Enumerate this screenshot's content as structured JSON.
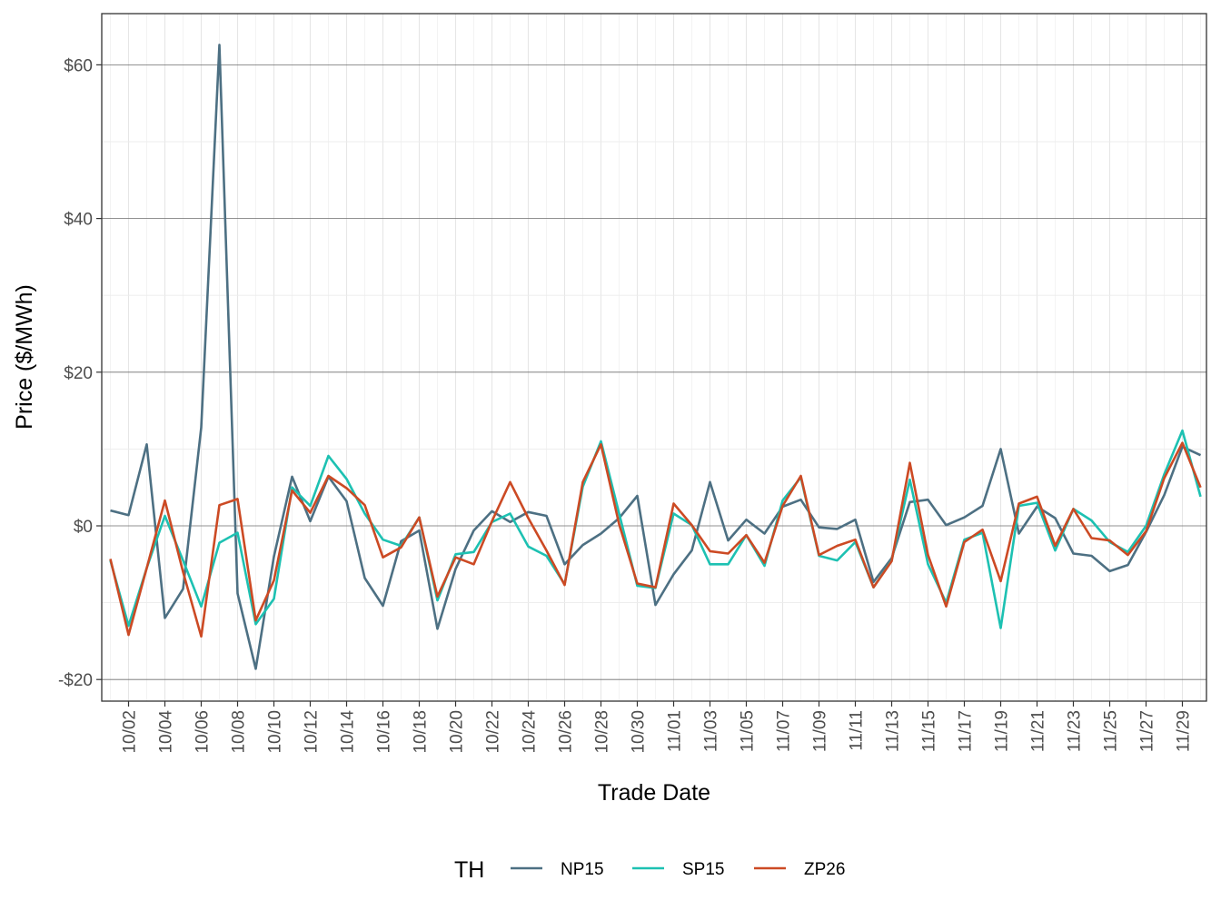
{
  "chart_data": {
    "type": "line",
    "title": "",
    "xlabel": "Trade Date",
    "ylabel": "Price ($/MWh)",
    "ylim": [
      -22.5,
      66.5
    ],
    "y_ticks": [
      -20,
      0,
      20,
      40,
      60
    ],
    "y_tick_labels": [
      "-$20",
      "$0",
      "$20",
      "$40",
      "$60"
    ],
    "x_tick_labels": [
      "10/02",
      "10/04",
      "10/06",
      "10/08",
      "10/10",
      "10/12",
      "10/14",
      "10/16",
      "10/18",
      "10/20",
      "10/22",
      "10/24",
      "10/26",
      "10/28",
      "10/30",
      "11/01",
      "11/03",
      "11/05",
      "11/07",
      "11/09",
      "11/11",
      "11/13",
      "11/15",
      "11/17",
      "11/19",
      "11/21",
      "11/23",
      "11/25",
      "11/27",
      "11/29"
    ],
    "grid": true,
    "legend_title": "TH",
    "legend_position": "bottom",
    "x": [
      "10/01",
      "10/02",
      "10/03",
      "10/04",
      "10/05",
      "10/06",
      "10/07",
      "10/08",
      "10/09",
      "10/10",
      "10/11",
      "10/12",
      "10/13",
      "10/14",
      "10/15",
      "10/16",
      "10/17",
      "10/18",
      "10/19",
      "10/20",
      "10/21",
      "10/22",
      "10/23",
      "10/24",
      "10/25",
      "10/26",
      "10/27",
      "10/28",
      "10/29",
      "10/30",
      "10/31",
      "11/01",
      "11/02",
      "11/03",
      "11/04",
      "11/05",
      "11/06",
      "11/07",
      "11/08",
      "11/09",
      "11/10",
      "11/11",
      "11/12",
      "11/13",
      "11/14",
      "11/15",
      "11/16",
      "11/17",
      "11/18",
      "11/19",
      "11/20",
      "11/21",
      "11/22",
      "11/23",
      "11/24",
      "11/25",
      "11/26",
      "11/27",
      "11/28",
      "11/29",
      "11/30"
    ],
    "series": [
      {
        "name": "NP15",
        "color": "#4d7083",
        "values": [
          2.0,
          1.4,
          10.6,
          -12.0,
          -8.2,
          12.8,
          62.6,
          -8.8,
          -18.6,
          -4.0,
          6.4,
          0.6,
          6.4,
          3.2,
          -6.8,
          -10.4,
          -2.0,
          -0.6,
          -13.4,
          -5.6,
          -0.6,
          1.9,
          0.5,
          1.8,
          1.3,
          -5.0,
          -2.5,
          -1.0,
          1.0,
          3.9,
          -10.3,
          -6.3,
          -3.2,
          5.7,
          -1.9,
          0.8,
          -1.0,
          2.5,
          3.4,
          -0.2,
          -0.4,
          0.8,
          -7.3,
          -4.2,
          3.1,
          3.4,
          0.1,
          1.1,
          2.6,
          10.0,
          -1.0,
          2.5,
          1.0,
          -3.6,
          -3.9,
          -5.9,
          -5.1,
          -0.8,
          4.0,
          10.3,
          9.2
        ]
      },
      {
        "name": "SP15",
        "color": "#1dc1b2",
        "values": [
          -4.5,
          -13.0,
          -5.5,
          1.3,
          -4.5,
          -10.5,
          -2.2,
          -0.9,
          -12.8,
          -9.5,
          5.0,
          2.6,
          9.1,
          6.1,
          1.6,
          -1.8,
          -2.6,
          1.1,
          -9.7,
          -3.7,
          -3.4,
          0.5,
          1.6,
          -2.7,
          -3.9,
          -7.6,
          5.1,
          11.0,
          1.6,
          -7.8,
          -8.1,
          1.6,
          0.1,
          -5.0,
          -5.0,
          -1.2,
          -5.2,
          3.3,
          6.3,
          -3.9,
          -4.5,
          -2.1,
          -8.0,
          -4.5,
          6.0,
          -5.0,
          -10.0,
          -1.8,
          -0.9,
          -13.3,
          2.6,
          3.0,
          -3.2,
          2.2,
          0.7,
          -2.1,
          -3.4,
          0.0,
          6.7,
          12.4,
          3.8
        ]
      },
      {
        "name": "ZP26",
        "color": "#cc4a24",
        "values": [
          -4.3,
          -14.2,
          -5.5,
          3.3,
          -6.0,
          -14.4,
          2.7,
          3.5,
          -12.3,
          -7.1,
          4.6,
          1.7,
          6.5,
          4.9,
          2.7,
          -4.1,
          -2.8,
          1.1,
          -9.2,
          -4.1,
          -5.0,
          0.6,
          5.7,
          1.0,
          -3.2,
          -7.7,
          5.7,
          10.6,
          0.2,
          -7.5,
          -8.0,
          2.9,
          0.1,
          -3.3,
          -3.6,
          -1.2,
          -4.8,
          2.6,
          6.5,
          -3.8,
          -2.6,
          -1.8,
          -8.0,
          -4.6,
          8.2,
          -3.8,
          -10.5,
          -2.1,
          -0.5,
          -7.2,
          2.9,
          3.8,
          -2.6,
          2.2,
          -1.6,
          -1.9,
          -3.8,
          -0.7,
          6.2,
          10.8,
          5.0
        ]
      }
    ]
  }
}
